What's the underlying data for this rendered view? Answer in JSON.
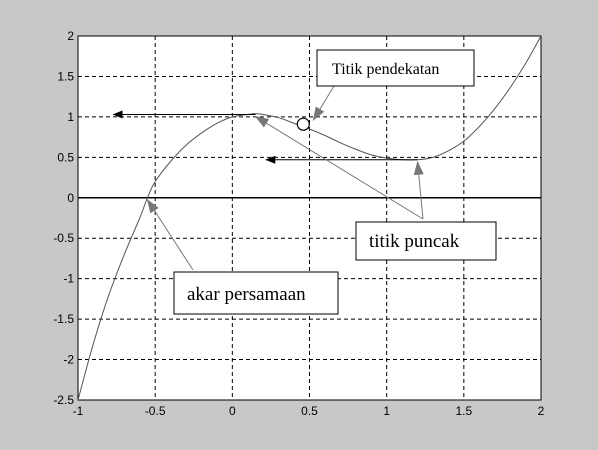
{
  "chart_data": {
    "type": "line",
    "title": "",
    "xlabel": "",
    "ylabel": "",
    "xlim": [
      -1,
      2
    ],
    "ylim": [
      -2.5,
      2
    ],
    "grid": true,
    "x_ticks": [
      "-1",
      "-0.5",
      "0",
      "0.5",
      "1",
      "1.5",
      "2"
    ],
    "y_ticks": [
      "2",
      "1.5",
      "1",
      "0.5",
      "0",
      "-0.5",
      "-1",
      "-1.5",
      "-2",
      "-2.5"
    ],
    "series": [
      {
        "x": [
          -1.0,
          -0.9,
          -0.8,
          -0.7,
          -0.6,
          -0.55,
          -0.5,
          -0.4,
          -0.3,
          -0.2,
          -0.1,
          0.0,
          0.1,
          0.15,
          0.2,
          0.3,
          0.4,
          0.5,
          0.6,
          0.7,
          0.8,
          0.9,
          1.0,
          1.1,
          1.2,
          1.3,
          1.4,
          1.5,
          1.6,
          1.7,
          1.8,
          1.9,
          2.0
        ],
        "y": [
          -2.5,
          -1.8,
          -1.2,
          -0.7,
          -0.25,
          0.0,
          0.2,
          0.45,
          0.65,
          0.8,
          0.92,
          1.0,
          1.03,
          1.04,
          1.03,
          0.99,
          0.92,
          0.85,
          0.77,
          0.68,
          0.6,
          0.53,
          0.49,
          0.47,
          0.47,
          0.5,
          0.58,
          0.7,
          0.88,
          1.1,
          1.36,
          1.66,
          2.0
        ]
      }
    ],
    "annotations": [
      {
        "id": "approx",
        "text": "Titik pendekatan",
        "marker": [
          0.46,
          0.91
        ]
      },
      {
        "id": "peak",
        "text": "titik puncak",
        "targets": [
          [
            0.15,
            1.03
          ],
          [
            1.2,
            0.47
          ]
        ]
      },
      {
        "id": "root",
        "text": "akar persamaan",
        "target": [
          -0.55,
          0.0
        ]
      }
    ],
    "value_arrows": [
      {
        "from": [
          0.15,
          1.03
        ],
        "to": [
          -0.77,
          1.03
        ]
      },
      {
        "from": [
          1.2,
          0.47
        ],
        "to": [
          0.22,
          0.47
        ]
      }
    ]
  }
}
